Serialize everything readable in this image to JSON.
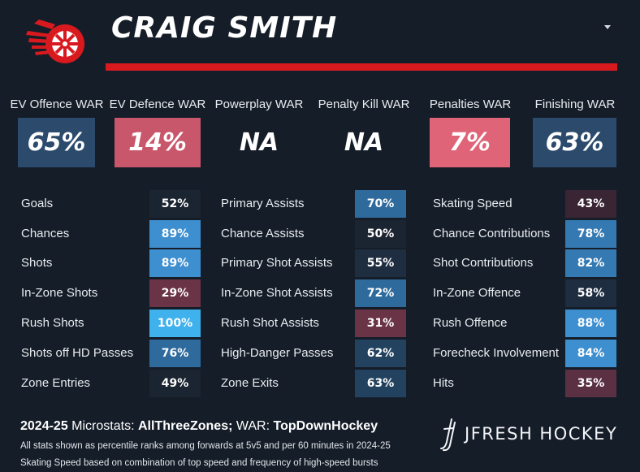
{
  "header": {
    "player_name": "CRAIG SMITH"
  },
  "war": [
    {
      "label": "EV Offence WAR",
      "value": "65%",
      "color": "#2c4b6c"
    },
    {
      "label": "EV Defence WAR",
      "value": "14%",
      "color": "#c9576b"
    },
    {
      "label": "Powerplay WAR",
      "value": "NA",
      "color": "transparent"
    },
    {
      "label": "Penalty Kill WAR",
      "value": "NA",
      "color": "transparent"
    },
    {
      "label": "Penalties WAR",
      "value": "7%",
      "color": "#e06478"
    },
    {
      "label": "Finishing WAR",
      "value": "63%",
      "color": "#2c4b6c"
    }
  ],
  "columns": [
    {
      "rows": [
        {
          "label": "Goals",
          "value": "52%",
          "color": "#1b2431"
        },
        {
          "label": "Chances",
          "value": "89%",
          "color": "#3e8fd0"
        },
        {
          "label": "Shots",
          "value": "89%",
          "color": "#3e8fd0"
        },
        {
          "label": "In-Zone Shots",
          "value": "29%",
          "color": "#6b3446"
        },
        {
          "label": "Rush Shots",
          "value": "100%",
          "color": "#3fb2ee"
        },
        {
          "label": "Shots off HD Passes",
          "value": "76%",
          "color": "#2f6a9c"
        },
        {
          "label": "Zone Entries",
          "value": "49%",
          "color": "#1b2431"
        }
      ]
    },
    {
      "rows": [
        {
          "label": "Primary Assists",
          "value": "70%",
          "color": "#2f6a9c"
        },
        {
          "label": "Chance Assists",
          "value": "50%",
          "color": "#1b2431"
        },
        {
          "label": "Primary Shot Assists",
          "value": "55%",
          "color": "#1e2d40"
        },
        {
          "label": "In-Zone Shot Assists",
          "value": "72%",
          "color": "#2f6a9c"
        },
        {
          "label": "Rush Shot Assists",
          "value": "31%",
          "color": "#6b3446"
        },
        {
          "label": "High-Danger Passes",
          "value": "62%",
          "color": "#234260"
        },
        {
          "label": "Zone Exits",
          "value": "63%",
          "color": "#234260"
        }
      ]
    },
    {
      "rows": [
        {
          "label": "Skating Speed",
          "value": "43%",
          "color": "#3a2534"
        },
        {
          "label": "Chance Contributions",
          "value": "78%",
          "color": "#3579b3"
        },
        {
          "label": "Shot Contributions",
          "value": "82%",
          "color": "#3579b3"
        },
        {
          "label": "In-Zone Offence",
          "value": "58%",
          "color": "#1e2d40"
        },
        {
          "label": "Rush Offence",
          "value": "88%",
          "color": "#3e8fd0"
        },
        {
          "label": "Forecheck Involvement",
          "value": "84%",
          "color": "#3e8fd0"
        },
        {
          "label": "Hits",
          "value": "35%",
          "color": "#5a3042"
        }
      ]
    }
  ],
  "footer": {
    "season": "2024-25 ",
    "micro_label": "Microstats: ",
    "micro_source": "AllThreeZones; ",
    "war_label": "WAR: ",
    "war_source": "TopDownHockey",
    "note1": "All stats shown as percentile ranks among forwards at 5v5 and per 60 minutes in 2024-25",
    "note2": "Skating Speed based on combination of top speed and frequency of high-speed bursts",
    "brand": "JFRESH HOCKEY"
  }
}
